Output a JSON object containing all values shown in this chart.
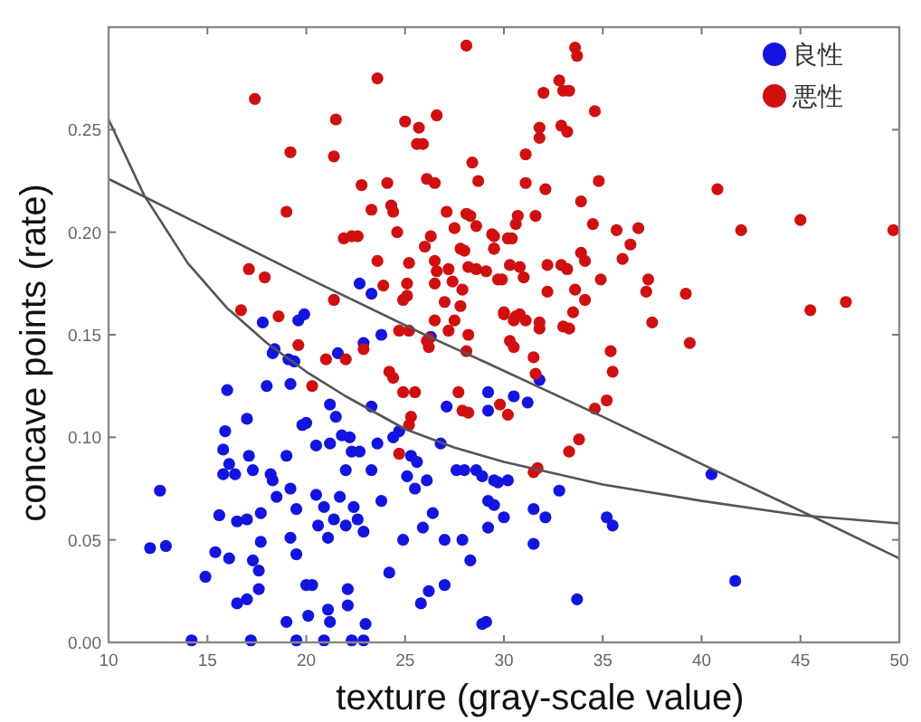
{
  "chart_data": {
    "type": "scatter",
    "xlabel": "texture (gray-scale value)",
    "ylabel": "concave points (rate)",
    "xlim": [
      10,
      50
    ],
    "ylim": [
      0,
      0.3
    ],
    "xticks": [
      10,
      15,
      20,
      25,
      30,
      35,
      40,
      45,
      50
    ],
    "yticks": [
      {
        "value": 0,
        "label": "0.00"
      },
      {
        "value": 0.05,
        "label": "0.05"
      },
      {
        "value": 0.1,
        "label": "0.10"
      },
      {
        "value": 0.15,
        "label": "0.15"
      },
      {
        "value": 0.2,
        "label": "0.20"
      },
      {
        "value": 0.25,
        "label": "0.25"
      }
    ],
    "marker": "circle",
    "legend": "top right",
    "grid": false,
    "series": [
      {
        "name": "良性",
        "color": "#1414e0",
        "x": [
          12.6,
          12.1,
          12.9,
          14.9,
          14.2,
          16.0,
          15.9,
          15.8,
          16.1,
          15.8,
          16.4,
          15.6,
          15.4,
          16.1,
          16.5,
          17.0,
          17.0,
          17.1,
          17.3,
          17.7,
          17.7,
          17.3,
          17.6,
          17.0,
          16.5,
          17.6,
          18.0,
          18.2,
          18.3,
          18.5,
          18.3,
          19.2,
          19.0,
          19.2,
          19.4,
          19.5,
          19.2,
          19.5,
          19.8,
          20.0,
          20.0,
          20.3,
          19.5,
          19.0,
          20.1,
          20.5,
          20.5,
          20.6,
          20.9,
          21.2,
          21.1,
          21.2,
          21.4,
          21.5,
          21.1,
          21.2,
          21.7,
          21.8,
          22.0,
          22.0,
          22.2,
          22.3,
          22.4,
          22.6,
          22.1,
          22.1,
          22.9,
          23.0,
          22.7,
          23.3,
          23.3,
          23.6,
          23.8,
          24.2,
          24.4,
          24.7,
          24.9,
          25.1,
          25.3,
          25.5,
          25.6,
          25.8,
          25.9,
          26.1,
          26.2,
          26.4,
          26.8,
          27.0,
          27.1,
          27.0,
          27.6,
          27.9,
          28.0,
          28.3,
          28.6,
          28.9,
          28.9,
          29.2,
          29.2,
          29.5,
          22.9,
          22.3,
          20.9,
          17.2,
          29.2,
          30.5,
          31.2,
          31.8,
          30.2,
          29.7,
          29.5,
          30.0,
          29.2,
          31.5,
          32.1,
          31.5,
          32.8,
          35.2,
          35.5,
          33.7,
          40.5,
          41.7,
          29.1,
          22.7,
          23.3,
          17.8,
          19.6,
          19.9,
          18.4,
          19.1,
          21.6,
          22.9,
          23.8,
          26.3
        ],
        "values": [
          0.074,
          0.046,
          0.047,
          0.032,
          0.001,
          0.123,
          0.103,
          0.094,
          0.087,
          0.082,
          0.082,
          0.062,
          0.044,
          0.041,
          0.059,
          0.06,
          0.109,
          0.091,
          0.084,
          0.063,
          0.049,
          0.04,
          0.035,
          0.021,
          0.019,
          0.026,
          0.125,
          0.082,
          0.079,
          0.071,
          0.141,
          0.075,
          0.091,
          0.126,
          0.137,
          0.065,
          0.051,
          0.043,
          0.106,
          0.107,
          0.028,
          0.028,
          0.001,
          0.01,
          0.013,
          0.096,
          0.072,
          0.057,
          0.066,
          0.116,
          0.051,
          0.097,
          0.06,
          0.11,
          0.016,
          0.01,
          0.071,
          0.101,
          0.084,
          0.057,
          0.1,
          0.093,
          0.066,
          0.06,
          0.026,
          0.018,
          0.054,
          0.009,
          0.093,
          0.115,
          0.084,
          0.097,
          0.069,
          0.034,
          0.1,
          0.103,
          0.05,
          0.081,
          0.091,
          0.075,
          0.088,
          0.019,
          0.056,
          0.079,
          0.025,
          0.063,
          0.097,
          0.05,
          0.115,
          0.028,
          0.084,
          0.05,
          0.084,
          0.04,
          0.084,
          0.009,
          0.081,
          0.069,
          0.122,
          0.079,
          0.001,
          0.001,
          0.001,
          0.001,
          0.113,
          0.12,
          0.117,
          0.128,
          0.079,
          0.078,
          0.067,
          0.061,
          0.056,
          0.065,
          0.061,
          0.048,
          0.074,
          0.061,
          0.057,
          0.021,
          0.082,
          0.03,
          0.01,
          0.175,
          0.17,
          0.156,
          0.157,
          0.16,
          0.143,
          0.138,
          0.141,
          0.146,
          0.15,
          0.149
        ]
      },
      {
        "name": "悪性",
        "color": "#d01010",
        "x": [
          28.1,
          23.6,
          17.4,
          21.5,
          25.0,
          25.7,
          26.6,
          19.2,
          21.4,
          25.6,
          25.9,
          28.4,
          28.7,
          22.8,
          24.1,
          26.1,
          26.5,
          19.0,
          23.3,
          24.3,
          24.4,
          27.1,
          28.1,
          28.3,
          27.5,
          28.6,
          24.6,
          21.9,
          22.3,
          22.6,
          26.3,
          26.0,
          27.8,
          28.0,
          29.5,
          29.5,
          30.2,
          23.6,
          25.2,
          26.5,
          26.6,
          27.2,
          28.2,
          28.6,
          29.1,
          29.7,
          29.9,
          17.1,
          17.9,
          23.9,
          25.1,
          25.1,
          26.5,
          27.4,
          27.9,
          24.9,
          21.4,
          27.0,
          27.8,
          16.7,
          18.6,
          30.0,
          30.6,
          26.5,
          27.5,
          24.7,
          25.2,
          26.2,
          27.2,
          28.2,
          28.1,
          19.6,
          22.0,
          21.0,
          33.6,
          33.7,
          32.8,
          33.0,
          33.3,
          32.0,
          34.6,
          31.8,
          31.8,
          32.9,
          33.2,
          31.1,
          31.1,
          32.1,
          34.8,
          33.9,
          40.8,
          30.7,
          31.6,
          30.6,
          34.5,
          35.7,
          36.8,
          42.0,
          45.0,
          49.7,
          29.4,
          30.4,
          29.5,
          36.4,
          33.9,
          34.1,
          36.0,
          30.3,
          30.8,
          31.0,
          32.2,
          32.9,
          33.2,
          34.9,
          37.3,
          37.2,
          33.6,
          34.1,
          32.2,
          39.2,
          30.0,
          30.8,
          31.1,
          30.5,
          31.8,
          31.8,
          33.5,
          33.0,
          33.3,
          37.5,
          45.5,
          47.3,
          30.3,
          30.5,
          31.5,
          35.4,
          39.4,
          22.9,
          20.3,
          24.2,
          24.4,
          24.9,
          25.5,
          25.3,
          25.2,
          24.7,
          26.1,
          26.2,
          27.7,
          27.9,
          28.2,
          31.6,
          29.8,
          30.2,
          35.5,
          35.2,
          34.6,
          33.8,
          33.3,
          31.5,
          31.7
        ],
        "values": [
          0.291,
          0.275,
          0.265,
          0.255,
          0.254,
          0.251,
          0.257,
          0.239,
          0.237,
          0.243,
          0.243,
          0.234,
          0.225,
          0.223,
          0.224,
          0.226,
          0.224,
          0.21,
          0.211,
          0.213,
          0.21,
          0.21,
          0.209,
          0.208,
          0.202,
          0.203,
          0.2,
          0.197,
          0.198,
          0.198,
          0.198,
          0.193,
          0.192,
          0.191,
          0.198,
          0.192,
          0.197,
          0.186,
          0.185,
          0.186,
          0.181,
          0.182,
          0.183,
          0.182,
          0.181,
          0.177,
          0.177,
          0.182,
          0.178,
          0.174,
          0.175,
          0.169,
          0.175,
          0.176,
          0.172,
          0.167,
          0.167,
          0.166,
          0.164,
          0.162,
          0.159,
          0.161,
          0.159,
          0.157,
          0.157,
          0.152,
          0.152,
          0.148,
          0.152,
          0.15,
          0.142,
          0.145,
          0.138,
          0.138,
          0.29,
          0.286,
          0.274,
          0.269,
          0.269,
          0.268,
          0.259,
          0.251,
          0.246,
          0.252,
          0.249,
          0.238,
          0.224,
          0.221,
          0.225,
          0.215,
          0.221,
          0.208,
          0.208,
          0.204,
          0.204,
          0.201,
          0.202,
          0.201,
          0.206,
          0.201,
          0.199,
          0.197,
          0.192,
          0.194,
          0.19,
          0.186,
          0.187,
          0.184,
          0.183,
          0.178,
          0.184,
          0.184,
          0.182,
          0.177,
          0.177,
          0.171,
          0.172,
          0.167,
          0.171,
          0.17,
          0.16,
          0.16,
          0.157,
          0.157,
          0.156,
          0.153,
          0.161,
          0.154,
          0.153,
          0.156,
          0.162,
          0.166,
          0.147,
          0.144,
          0.139,
          0.142,
          0.146,
          0.143,
          0.125,
          0.132,
          0.129,
          0.122,
          0.122,
          0.11,
          0.106,
          0.092,
          0.147,
          0.144,
          0.122,
          0.113,
          0.112,
          0.131,
          0.116,
          0.111,
          0.132,
          0.118,
          0.114,
          0.099,
          0.093,
          0.083,
          0.085
        ]
      },
      {
        "type": "line",
        "marker": "none",
        "color": "#555555",
        "x": [
          10,
          11.8,
          14,
          16,
          18,
          20,
          22,
          25,
          27.5,
          30,
          35,
          40,
          45,
          50
        ],
        "values": [
          0.255,
          0.218,
          0.185,
          0.163,
          0.146,
          0.132,
          0.12,
          0.104,
          0.095,
          0.088,
          0.077,
          0.069,
          0.062,
          0.058
        ]
      },
      {
        "type": "line",
        "marker": "none",
        "color": "#555555",
        "x": [
          10,
          15,
          20,
          26,
          29.2,
          35,
          40,
          45.7,
          50
        ],
        "values": [
          0.226,
          0.202,
          0.178,
          0.15,
          0.136,
          0.11,
          0.087,
          0.061,
          0.041
        ]
      }
    ]
  }
}
